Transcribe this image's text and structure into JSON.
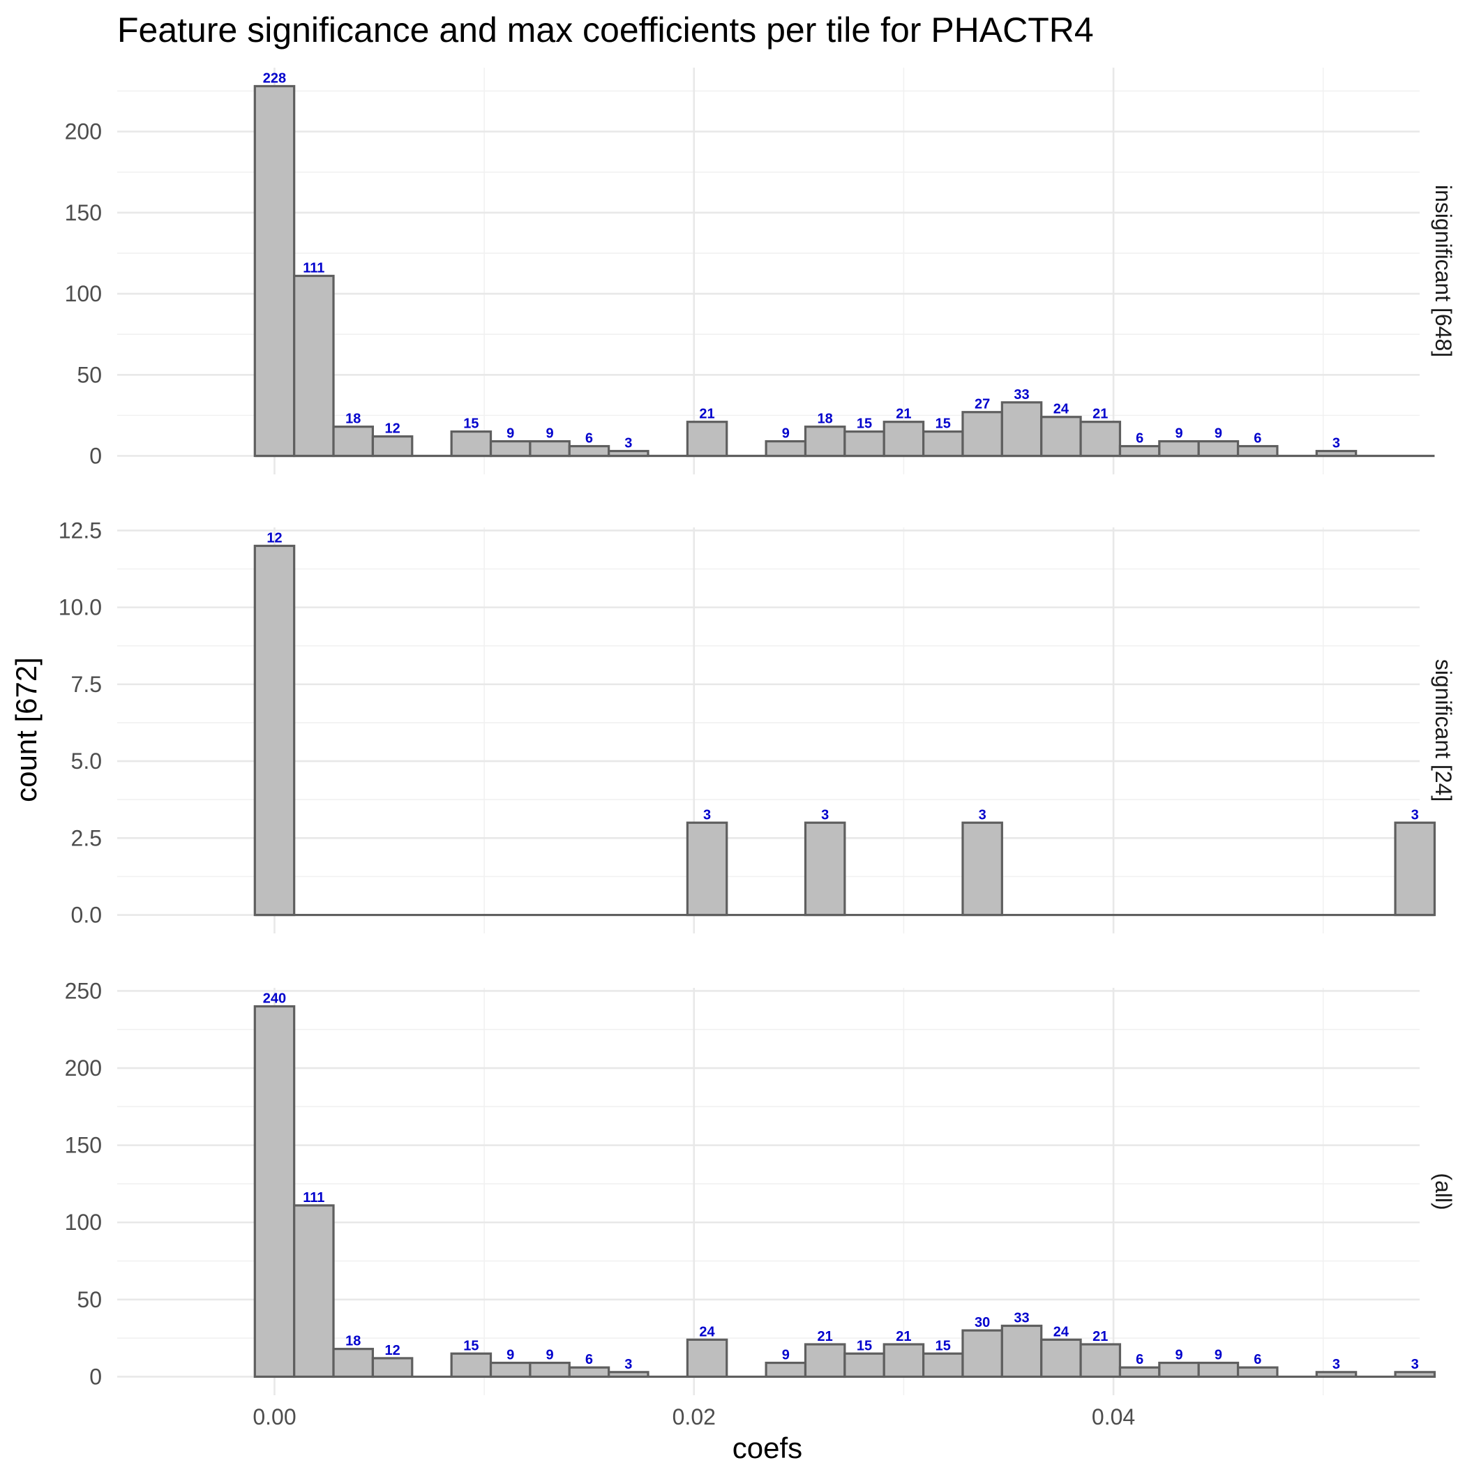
{
  "chart_data": {
    "type": "bar",
    "title": "Feature significance and max coefficients per tile for PHACTR4",
    "xlabel": "coefs",
    "ylabel": "count [672]",
    "x_ticks": [
      "0.00",
      "0.02",
      "0.04"
    ],
    "x_tick_values": [
      0.0,
      0.02,
      0.04
    ],
    "xlim": [
      -0.0075,
      0.0546
    ],
    "bin_width": 0.001875,
    "bin_centers": [
      0.0,
      0.001875,
      0.00375,
      0.005625,
      0.0075,
      0.009375,
      0.01125,
      0.013125,
      0.015,
      0.016875,
      0.01875,
      0.020625,
      0.0225,
      0.024375,
      0.02625,
      0.028125,
      0.03,
      0.031875,
      0.03375,
      0.035625,
      0.0375,
      0.039375,
      0.04125,
      0.043125,
      0.045,
      0.046875,
      0.04875,
      0.050625,
      0.0525,
      0.054375
    ],
    "grid": true,
    "panels": [
      {
        "label": "insignificant [648]",
        "y_ticks": [
          "0",
          "50",
          "100",
          "150",
          "200"
        ],
        "y_tick_values": [
          0,
          50,
          100,
          150,
          200
        ],
        "ylim": [
          -11.4,
          239.4
        ],
        "values": [
          228,
          111,
          18,
          12,
          0,
          15,
          9,
          9,
          6,
          3,
          0,
          21,
          0,
          9,
          18,
          15,
          21,
          15,
          27,
          33,
          24,
          21,
          6,
          9,
          9,
          6,
          0,
          3,
          0,
          0
        ]
      },
      {
        "label": "significant [24]",
        "y_ticks": [
          "0.0",
          "2.5",
          "5.0",
          "7.5",
          "10.0",
          "12.5"
        ],
        "y_tick_values": [
          0,
          2.5,
          5.0,
          7.5,
          10.0,
          12.5
        ],
        "ylim": [
          -0.6,
          12.6
        ],
        "values": [
          12,
          0,
          0,
          0,
          0,
          0,
          0,
          0,
          0,
          0,
          0,
          3,
          0,
          0,
          3,
          0,
          0,
          0,
          3,
          0,
          0,
          0,
          0,
          0,
          0,
          0,
          0,
          0,
          0,
          3
        ]
      },
      {
        "label": "(all)",
        "y_ticks": [
          "0",
          "50",
          "100",
          "150",
          "200",
          "250"
        ],
        "y_tick_values": [
          0,
          50,
          100,
          150,
          200,
          250
        ],
        "ylim": [
          -12.0,
          252.0
        ],
        "values": [
          240,
          111,
          18,
          12,
          0,
          15,
          9,
          9,
          6,
          3,
          0,
          24,
          0,
          9,
          21,
          15,
          21,
          15,
          30,
          33,
          24,
          21,
          6,
          9,
          9,
          6,
          0,
          3,
          0,
          3
        ]
      }
    ],
    "colors": {
      "bar_fill": "#bebebe",
      "bar_outline": "#5f5f5f",
      "bar_label": "#0000cc"
    }
  }
}
